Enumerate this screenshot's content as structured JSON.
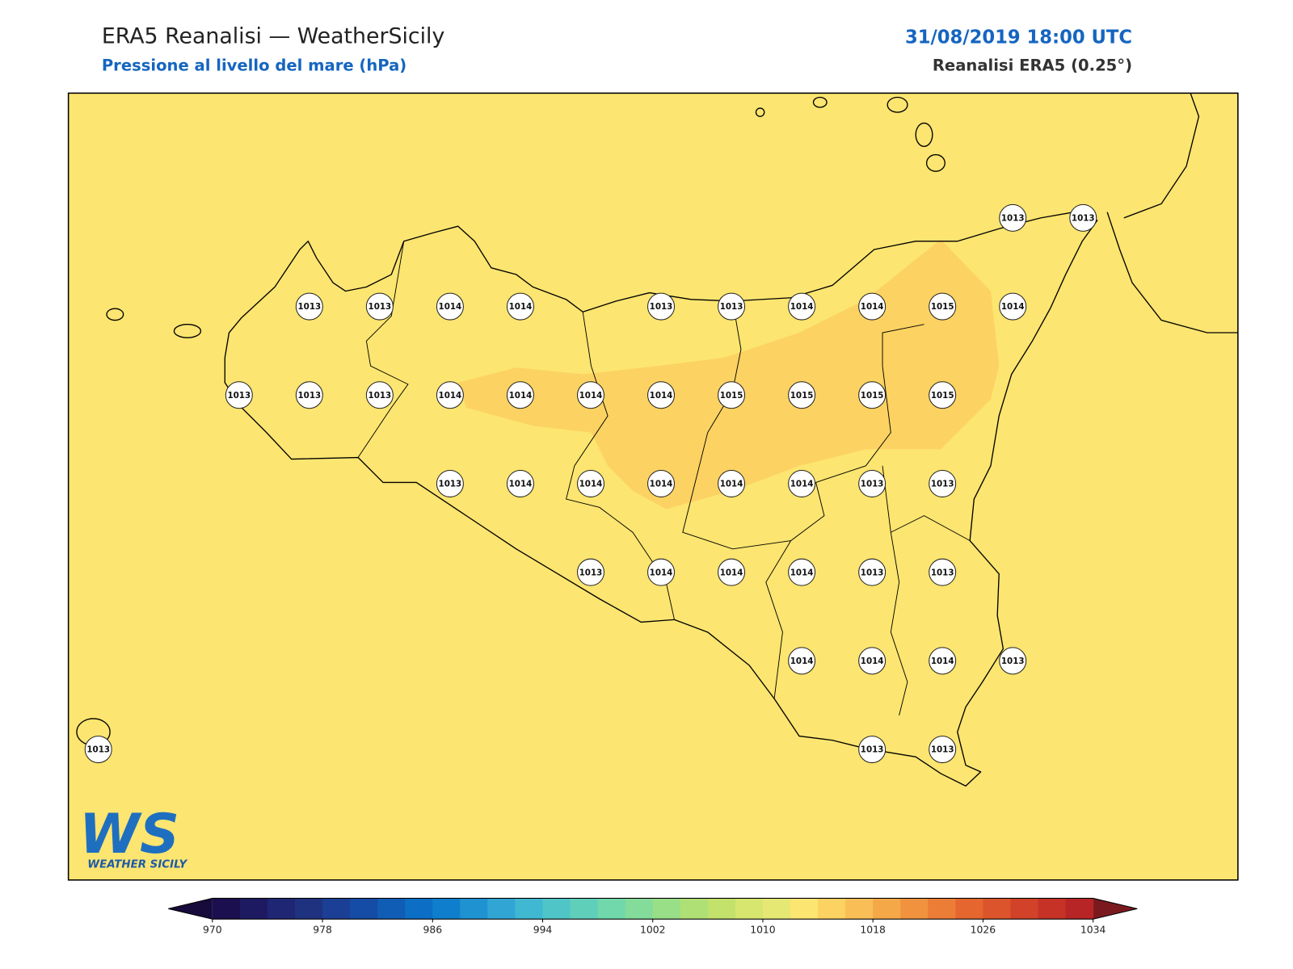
{
  "header": {
    "title": "ERA5 Reanalisi — WeatherSicily",
    "subtitle": "Pressione al livello del mare (hPa)",
    "datetime": "31/08/2019 18:00 UTC",
    "source": "Reanalisi ERA5 (0.25°)"
  },
  "pressure_grid": {
    "rows": [
      [
        null,
        null,
        null,
        null,
        null,
        null,
        null,
        null,
        null,
        null,
        null,
        null,
        null,
        1013,
        1013
      ],
      [
        null,
        null,
        null,
        1013,
        1013,
        1014,
        1014,
        null,
        1013,
        1013,
        1014,
        1014,
        1015,
        1014,
        null
      ],
      [
        null,
        null,
        1013,
        1013,
        1013,
        1014,
        1014,
        1014,
        1014,
        1015,
        1015,
        1015,
        1015,
        null,
        null
      ],
      [
        null,
        null,
        null,
        null,
        null,
        1013,
        1014,
        1014,
        1014,
        1014,
        1014,
        1013,
        1013,
        null,
        null
      ],
      [
        null,
        null,
        null,
        null,
        null,
        null,
        null,
        1013,
        1014,
        1014,
        1014,
        1013,
        1013,
        null,
        null
      ],
      [
        null,
        null,
        null,
        null,
        null,
        null,
        null,
        null,
        null,
        null,
        1014,
        1014,
        1014,
        1013,
        null
      ],
      [
        1013,
        null,
        null,
        null,
        null,
        null,
        null,
        null,
        null,
        null,
        null,
        1013,
        1013,
        null,
        null
      ]
    ]
  },
  "colorbar": {
    "range": [
      970,
      1034
    ],
    "ticks": [
      970,
      978,
      986,
      994,
      1002,
      1010,
      1018,
      1026,
      1034
    ],
    "colors": [
      "#1c0f4f",
      "#1e1a62",
      "#1f2673",
      "#1f3280",
      "#1b3f95",
      "#154ca6",
      "#105db5",
      "#0c6ec5",
      "#0f7fcd",
      "#1f92d2",
      "#31a6d5",
      "#40b8d1",
      "#4fc5c7",
      "#5fcfba",
      "#70d8aa",
      "#84dc9a",
      "#98df88",
      "#aee076",
      "#c2e26b",
      "#d6e66e",
      "#e6e874",
      "#fce570",
      "#fcd262",
      "#f9be55",
      "#f5a848",
      "#f0923e",
      "#ec7d36",
      "#e5672f",
      "#dc542b",
      "#d14228",
      "#c63226",
      "#b72526"
    ],
    "under": "#160b3a",
    "over": "#7a1a1f"
  },
  "logo": {
    "mark": "WS",
    "name": "WEATHER SICILY"
  }
}
